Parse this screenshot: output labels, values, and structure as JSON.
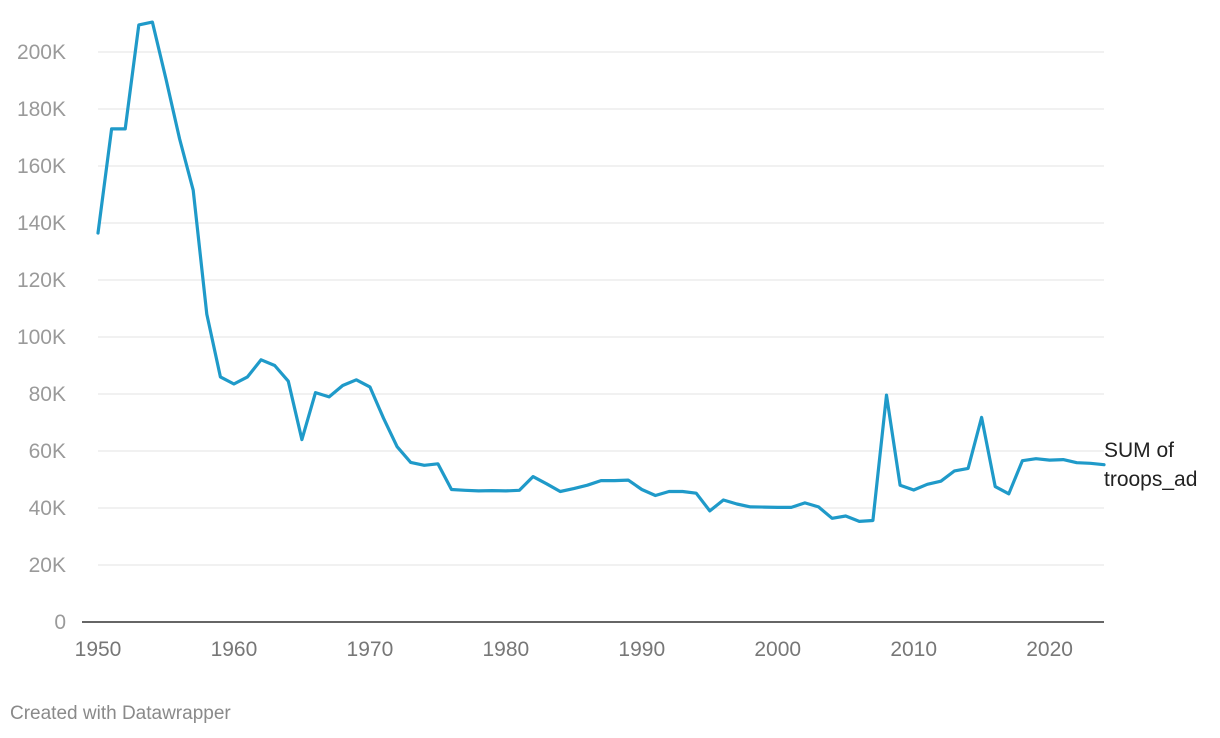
{
  "chart_data": {
    "type": "line",
    "title": "",
    "xlabel": "",
    "ylabel": "",
    "xlim": [
      1950,
      2024
    ],
    "ylim": [
      0,
      210000
    ],
    "grid": true,
    "y_ticks": [
      0,
      20000,
      40000,
      60000,
      80000,
      100000,
      120000,
      140000,
      160000,
      180000,
      200000
    ],
    "y_tick_labels": [
      "0",
      "20K",
      "40K",
      "60K",
      "80K",
      "100K",
      "120K",
      "140K",
      "160K",
      "180K",
      "200K"
    ],
    "x_ticks": [
      1950,
      1960,
      1970,
      1980,
      1990,
      2000,
      2010,
      2020
    ],
    "x_tick_labels": [
      "1950",
      "1960",
      "1970",
      "1980",
      "1990",
      "2000",
      "2010",
      "2020"
    ],
    "series": [
      {
        "name": "SUM of troops_ad",
        "label_lines": [
          "SUM of",
          "troops_ad"
        ],
        "color": "#1f9ac9",
        "x": [
          1950,
          1951,
          1952,
          1953,
          1954,
          1955,
          1956,
          1957,
          1958,
          1959,
          1960,
          1961,
          1962,
          1963,
          1964,
          1965,
          1966,
          1967,
          1968,
          1969,
          1970,
          1971,
          1972,
          1973,
          1974,
          1975,
          1976,
          1977,
          1978,
          1979,
          1980,
          1981,
          1982,
          1983,
          1984,
          1985,
          1986,
          1987,
          1988,
          1989,
          1990,
          1991,
          1992,
          1993,
          1994,
          1995,
          1996,
          1997,
          1998,
          1999,
          2000,
          2001,
          2002,
          2003,
          2004,
          2005,
          2006,
          2007,
          2008,
          2009,
          2010,
          2011,
          2012,
          2013,
          2014,
          2015,
          2016,
          2017,
          2018,
          2019,
          2020,
          2021,
          2022,
          2023,
          2024
        ],
        "values": [
          136500,
          173000,
          173000,
          209500,
          210500,
          190500,
          169500,
          151500,
          108000,
          86000,
          83500,
          86000,
          92000,
          90000,
          84500,
          64000,
          80500,
          79000,
          83000,
          85000,
          82500,
          71500,
          61500,
          56000,
          55000,
          55500,
          46500,
          46200,
          46000,
          46100,
          46000,
          46200,
          51000,
          48500,
          45800,
          46800,
          48000,
          49600,
          49600,
          49800,
          46500,
          44400,
          45800,
          45800,
          45200,
          39000,
          42800,
          41400,
          40400,
          40300,
          40200,
          40200,
          41800,
          40400,
          36400,
          37200,
          35300,
          35600,
          79600,
          48000,
          46300,
          48300,
          49400,
          53000,
          53900,
          71800,
          47500,
          45000,
          56600,
          57300,
          56800,
          57000,
          55900,
          55700,
          55200
        ]
      }
    ]
  },
  "footer": {
    "credit": "Created with Datawrapper"
  }
}
